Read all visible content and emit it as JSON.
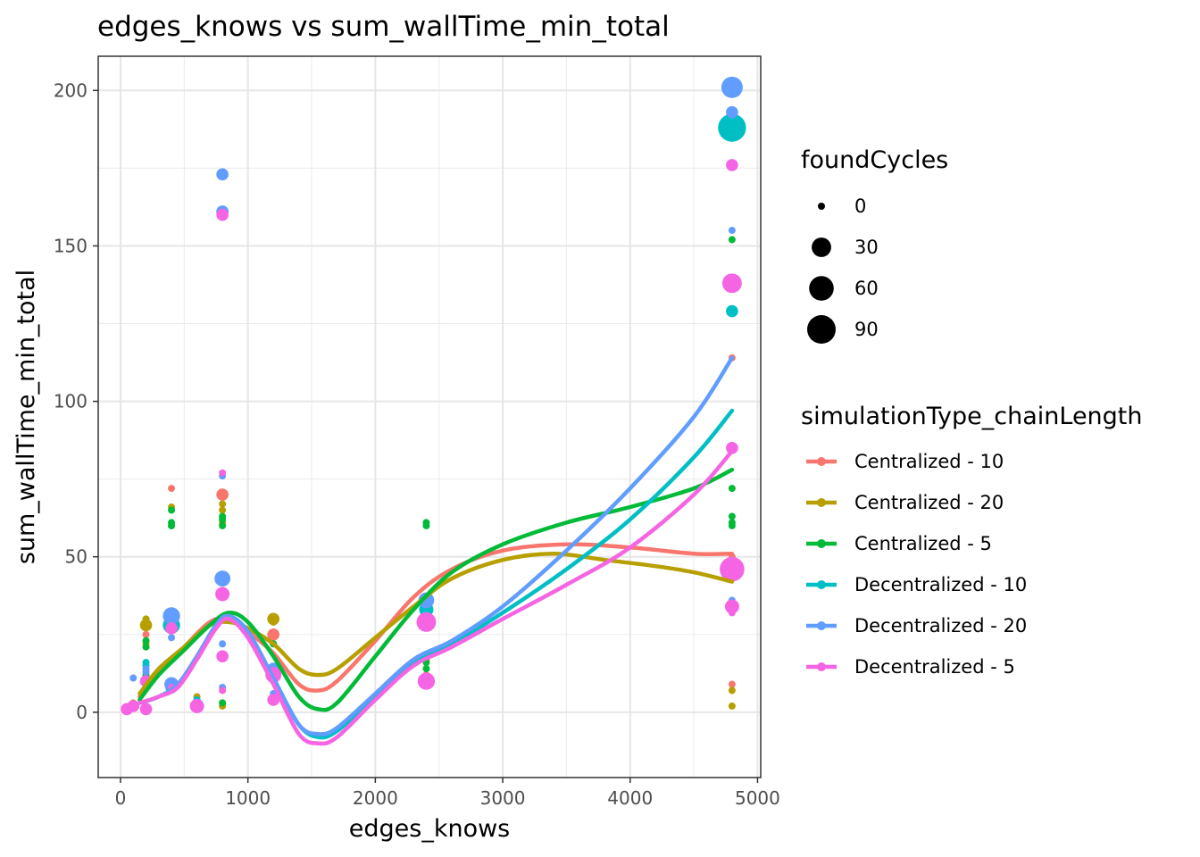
{
  "chart_data": {
    "type": "scatter",
    "title": "edges_knows  vs  sum_wallTime_min_total",
    "xlabel": "edges_knows",
    "ylabel": "sum_wallTime_min_total",
    "xlim": [
      -175,
      5025
    ],
    "ylim": [
      -21,
      211
    ],
    "x_ticks": [
      0,
      1000,
      2000,
      3000,
      4000,
      5000
    ],
    "x_tick_labels": [
      "0",
      "1000",
      "2000",
      "3000",
      "4000",
      "5000"
    ],
    "y_ticks": [
      0,
      50,
      100,
      150,
      200
    ],
    "y_tick_labels": [
      "0",
      "50",
      "100",
      "150",
      "200"
    ],
    "grid": true,
    "legend_position": "right",
    "size_legend": {
      "title": "foundCycles",
      "entries": [
        {
          "label": "0",
          "value": 0
        },
        {
          "label": "30",
          "value": 30
        },
        {
          "label": "60",
          "value": 60
        },
        {
          "label": "90",
          "value": 90
        }
      ]
    },
    "color_legend": {
      "title": "simulationType_chainLength"
    },
    "series": [
      {
        "name": "Centralized - 10",
        "color": "#F8766D",
        "points": [
          [
            50,
            1,
            0
          ],
          [
            100,
            2,
            0
          ],
          [
            200,
            11,
            0
          ],
          [
            200,
            25,
            0
          ],
          [
            400,
            72,
            0
          ],
          [
            400,
            8,
            0
          ],
          [
            600,
            4,
            0
          ],
          [
            800,
            70,
            5
          ],
          [
            800,
            3,
            0
          ],
          [
            800,
            30,
            0
          ],
          [
            1200,
            25,
            5
          ],
          [
            1200,
            10,
            0
          ],
          [
            2400,
            12,
            0
          ],
          [
            2400,
            30,
            10
          ],
          [
            4800,
            114,
            0
          ],
          [
            4800,
            9,
            0
          ],
          [
            4800,
            50,
            0
          ]
        ],
        "smooth": [
          [
            150,
            5
          ],
          [
            300,
            13
          ],
          [
            500,
            21
          ],
          [
            700,
            29
          ],
          [
            850,
            30
          ],
          [
            1000,
            26
          ],
          [
            1200,
            19
          ],
          [
            1400,
            9
          ],
          [
            1550,
            7
          ],
          [
            1700,
            10
          ],
          [
            2000,
            23
          ],
          [
            2300,
            37
          ],
          [
            2600,
            46
          ],
          [
            3000,
            52
          ],
          [
            3500,
            54
          ],
          [
            4000,
            53
          ],
          [
            4500,
            51
          ],
          [
            4800,
            51
          ]
        ]
      },
      {
        "name": "Centralized - 20",
        "color": "#B79F00",
        "points": [
          [
            50,
            1,
            0
          ],
          [
            100,
            3,
            0
          ],
          [
            200,
            28,
            5
          ],
          [
            200,
            30,
            0
          ],
          [
            200,
            22,
            0
          ],
          [
            400,
            66,
            0
          ],
          [
            400,
            60,
            0
          ],
          [
            400,
            30,
            0
          ],
          [
            600,
            5,
            0
          ],
          [
            800,
            67,
            0
          ],
          [
            800,
            65,
            0
          ],
          [
            800,
            61,
            0
          ],
          [
            800,
            2,
            0
          ],
          [
            1200,
            30,
            5
          ],
          [
            1200,
            29,
            0
          ],
          [
            2400,
            17,
            0
          ],
          [
            2400,
            35,
            0
          ],
          [
            4800,
            7,
            0
          ],
          [
            4800,
            2,
            0
          ],
          [
            4800,
            48,
            0
          ]
        ],
        "smooth": [
          [
            150,
            6
          ],
          [
            300,
            14
          ],
          [
            500,
            21
          ],
          [
            700,
            28
          ],
          [
            850,
            29
          ],
          [
            1000,
            27
          ],
          [
            1200,
            22
          ],
          [
            1400,
            14
          ],
          [
            1550,
            12
          ],
          [
            1700,
            14
          ],
          [
            2000,
            24
          ],
          [
            2300,
            34
          ],
          [
            2600,
            43
          ],
          [
            3000,
            49
          ],
          [
            3400,
            51
          ],
          [
            3800,
            49
          ],
          [
            4200,
            47
          ],
          [
            4500,
            45
          ],
          [
            4800,
            42
          ]
        ]
      },
      {
        "name": "Centralized - 5",
        "color": "#00BA38",
        "points": [
          [
            50,
            1,
            0
          ],
          [
            100,
            2,
            0
          ],
          [
            200,
            21,
            0
          ],
          [
            200,
            23,
            0
          ],
          [
            200,
            12,
            0
          ],
          [
            400,
            65,
            0
          ],
          [
            400,
            61,
            0
          ],
          [
            400,
            60,
            0
          ],
          [
            600,
            3,
            0
          ],
          [
            800,
            63,
            0
          ],
          [
            800,
            62,
            0
          ],
          [
            800,
            60,
            0
          ],
          [
            800,
            3,
            0
          ],
          [
            1200,
            22,
            0
          ],
          [
            2400,
            61,
            0
          ],
          [
            2400,
            60,
            0
          ],
          [
            2400,
            14,
            0
          ],
          [
            2400,
            16,
            0
          ],
          [
            4800,
            152,
            0
          ],
          [
            4800,
            72,
            0
          ],
          [
            4800,
            63,
            0
          ],
          [
            4800,
            61,
            0
          ],
          [
            4800,
            60,
            0
          ]
        ],
        "smooth": [
          [
            150,
            4
          ],
          [
            300,
            12
          ],
          [
            500,
            20
          ],
          [
            700,
            28
          ],
          [
            850,
            32
          ],
          [
            1000,
            29
          ],
          [
            1200,
            18
          ],
          [
            1400,
            5
          ],
          [
            1550,
            1
          ],
          [
            1700,
            3
          ],
          [
            2000,
            18
          ],
          [
            2300,
            33
          ],
          [
            2600,
            45
          ],
          [
            3000,
            54
          ],
          [
            3500,
            61
          ],
          [
            4000,
            66
          ],
          [
            4500,
            72
          ],
          [
            4800,
            78
          ]
        ]
      },
      {
        "name": "Decentralized - 10",
        "color": "#00BFC4",
        "points": [
          [
            50,
            1,
            0
          ],
          [
            100,
            2,
            0
          ],
          [
            200,
            15,
            0
          ],
          [
            200,
            16,
            0
          ],
          [
            400,
            28,
            20
          ],
          [
            400,
            8,
            5
          ],
          [
            600,
            4,
            0
          ],
          [
            800,
            161,
            5
          ],
          [
            800,
            37,
            0
          ],
          [
            1200,
            12,
            10
          ],
          [
            1200,
            5,
            0
          ],
          [
            2400,
            33,
            10
          ],
          [
            2400,
            10,
            5
          ],
          [
            4800,
            188,
            85
          ],
          [
            4800,
            129,
            5
          ],
          [
            4800,
            46,
            0
          ]
        ],
        "smooth": [
          [
            150,
            3
          ],
          [
            300,
            5
          ],
          [
            450,
            9
          ],
          [
            600,
            18
          ],
          [
            750,
            28
          ],
          [
            850,
            31
          ],
          [
            1000,
            26
          ],
          [
            1200,
            11
          ],
          [
            1400,
            -4
          ],
          [
            1550,
            -8
          ],
          [
            1700,
            -6
          ],
          [
            2000,
            5
          ],
          [
            2300,
            16
          ],
          [
            2600,
            22
          ],
          [
            3000,
            32
          ],
          [
            3500,
            46
          ],
          [
            4000,
            62
          ],
          [
            4500,
            82
          ],
          [
            4800,
            97
          ]
        ]
      },
      {
        "name": "Decentralized - 20",
        "color": "#619CFF",
        "points": [
          [
            50,
            1,
            0
          ],
          [
            100,
            11,
            0
          ],
          [
            200,
            14,
            0
          ],
          [
            200,
            13,
            0
          ],
          [
            400,
            31,
            20
          ],
          [
            400,
            24,
            0
          ],
          [
            400,
            9,
            10
          ],
          [
            600,
            3,
            0
          ],
          [
            800,
            173,
            5
          ],
          [
            800,
            161,
            5
          ],
          [
            800,
            76,
            0
          ],
          [
            800,
            43,
            15
          ],
          [
            800,
            22,
            0
          ],
          [
            800,
            8,
            0
          ],
          [
            1200,
            14,
            5
          ],
          [
            1200,
            6,
            0
          ],
          [
            2400,
            36,
            15
          ],
          [
            2400,
            30,
            10
          ],
          [
            2400,
            10,
            5
          ],
          [
            4800,
            201,
            40
          ],
          [
            4800,
            193,
            5
          ],
          [
            4800,
            155,
            0
          ],
          [
            4800,
            36,
            0
          ],
          [
            4800,
            46,
            0
          ]
        ],
        "smooth": [
          [
            150,
            3
          ],
          [
            300,
            5
          ],
          [
            450,
            9
          ],
          [
            600,
            18
          ],
          [
            750,
            28
          ],
          [
            850,
            31
          ],
          [
            1000,
            26
          ],
          [
            1200,
            11
          ],
          [
            1400,
            -4
          ],
          [
            1550,
            -7
          ],
          [
            1700,
            -5
          ],
          [
            2000,
            6
          ],
          [
            2300,
            17
          ],
          [
            2600,
            23
          ],
          [
            3000,
            34
          ],
          [
            3500,
            52
          ],
          [
            4000,
            72
          ],
          [
            4500,
            95
          ],
          [
            4800,
            114
          ]
        ]
      },
      {
        "name": "Decentralized - 5",
        "color": "#F564E3",
        "points": [
          [
            50,
            1,
            5
          ],
          [
            100,
            2,
            5
          ],
          [
            200,
            10,
            5
          ],
          [
            200,
            1,
            5
          ],
          [
            400,
            27,
            5
          ],
          [
            400,
            8,
            0
          ],
          [
            600,
            2,
            10
          ],
          [
            800,
            160,
            5
          ],
          [
            800,
            77,
            0
          ],
          [
            800,
            38,
            10
          ],
          [
            800,
            18,
            5
          ],
          [
            800,
            7,
            0
          ],
          [
            1200,
            12,
            15
          ],
          [
            1200,
            4,
            5
          ],
          [
            2400,
            29,
            30
          ],
          [
            2400,
            10,
            20
          ],
          [
            4800,
            176,
            5
          ],
          [
            4800,
            138,
            30
          ],
          [
            4800,
            85,
            5
          ],
          [
            4800,
            46,
            60
          ],
          [
            4800,
            34,
            10
          ],
          [
            4800,
            32,
            0
          ]
        ],
        "smooth": [
          [
            150,
            3
          ],
          [
            300,
            5
          ],
          [
            450,
            8
          ],
          [
            600,
            17
          ],
          [
            750,
            27
          ],
          [
            850,
            30
          ],
          [
            1000,
            24
          ],
          [
            1200,
            9
          ],
          [
            1400,
            -7
          ],
          [
            1550,
            -10
          ],
          [
            1700,
            -8
          ],
          [
            2000,
            4
          ],
          [
            2300,
            15
          ],
          [
            2600,
            21
          ],
          [
            3000,
            30
          ],
          [
            3500,
            41
          ],
          [
            4000,
            53
          ],
          [
            4500,
            70
          ],
          [
            4800,
            84
          ]
        ]
      }
    ]
  }
}
